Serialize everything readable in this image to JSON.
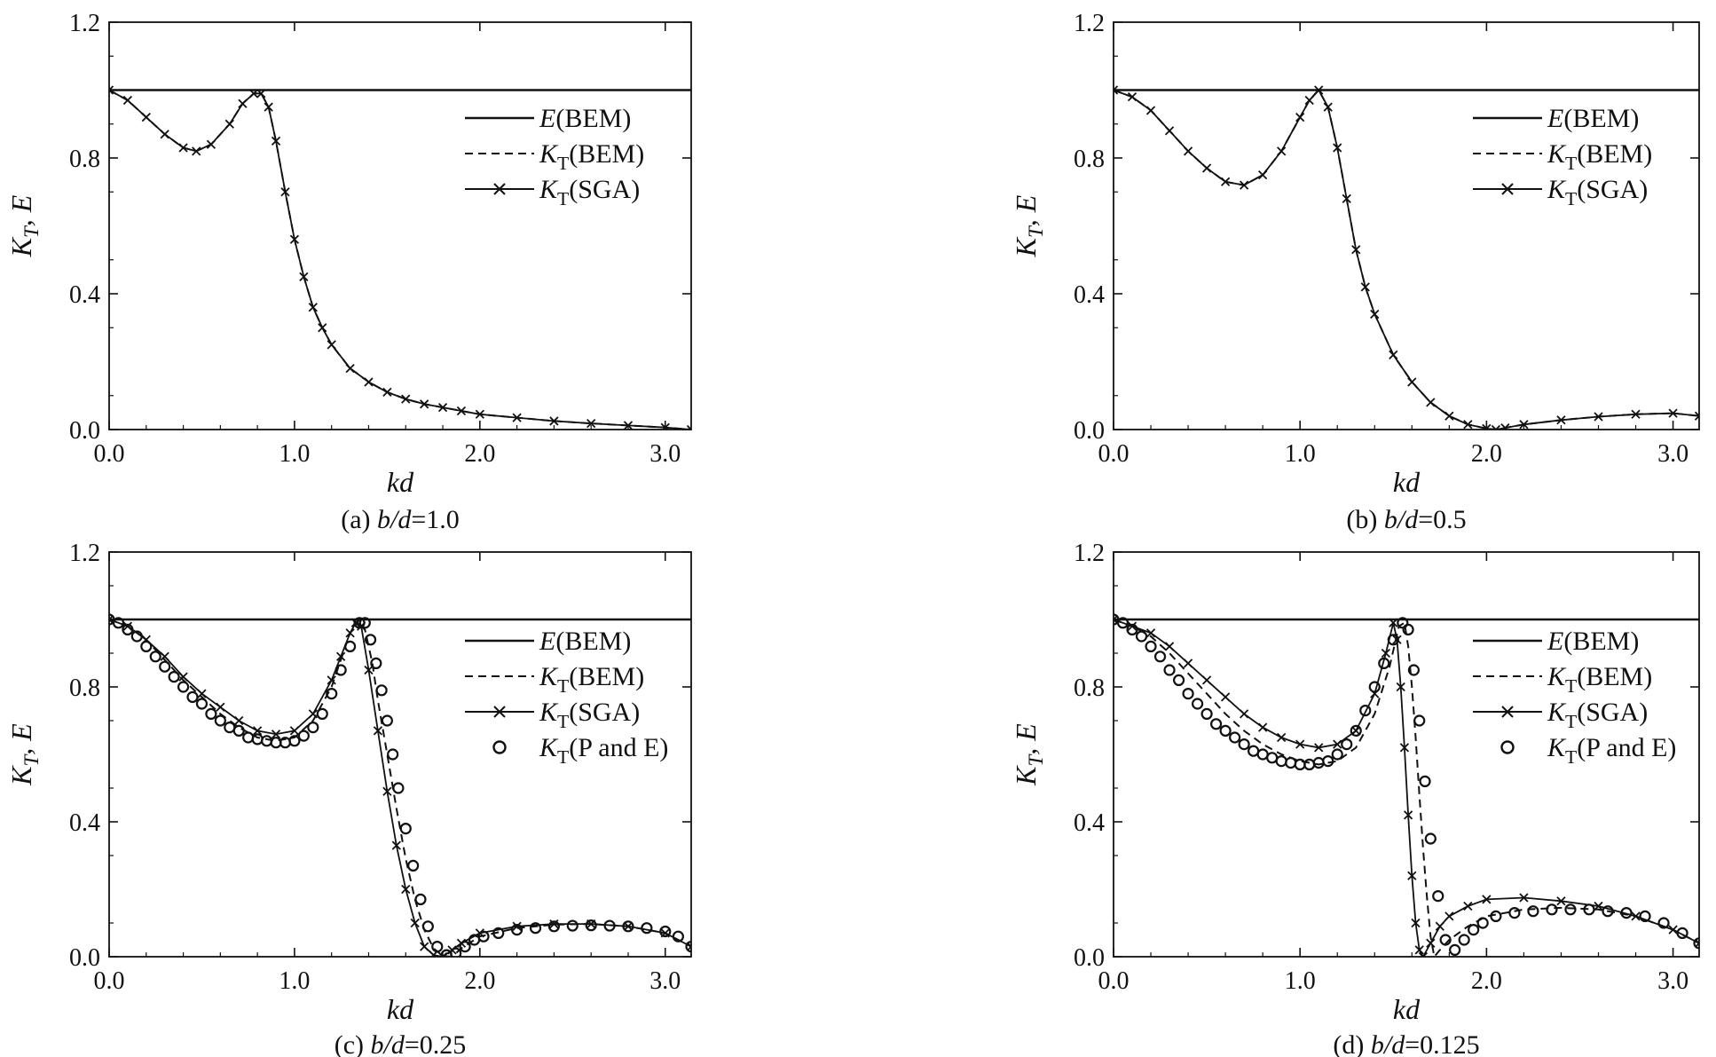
{
  "figure": {
    "panels": [
      {
        "caption": "(a) b/d=1.0",
        "xlabel": "kd",
        "ylabel": "K_T, E",
        "legend": [
          "E(BEM)",
          "K_T(BEM)",
          "K_T(SGA)"
        ]
      },
      {
        "caption": "(b) b/d=0.5",
        "xlabel": "kd",
        "ylabel": "K_T, E",
        "legend": [
          "E(BEM)",
          "K_T(BEM)",
          "K_T(SGA)"
        ]
      },
      {
        "caption": "(c) b/d=0.25",
        "xlabel": "kd",
        "ylabel": "K_T, E",
        "legend": [
          "E(BEM)",
          "K_T(BEM)",
          "K_T(SGA)",
          "K_T(P and E)"
        ]
      },
      {
        "caption": "(d) b/d=0.125",
        "xlabel": "kd",
        "ylabel": "K_T, E",
        "legend": [
          "E(BEM)",
          "K_T(BEM)",
          "K_T(SGA)",
          "K_T(P and E)"
        ]
      }
    ]
  },
  "chart_data": [
    {
      "type": "line",
      "panel": "(a) b/d=1.0",
      "xlabel": "kd",
      "ylabel": "K_T, E",
      "xlim": [
        0,
        3.14
      ],
      "ylim": [
        0,
        1.2
      ],
      "xticks": [
        "0.0",
        "1.0",
        "2.0",
        "3.0"
      ],
      "yticks": [
        "0.0",
        "0.4",
        "0.8",
        "1.2"
      ],
      "legend_position": "upper-right",
      "series": [
        {
          "name": "E(BEM)",
          "style": "solid",
          "x": [
            0,
            3.14
          ],
          "y": [
            1.0,
            1.0
          ]
        },
        {
          "name": "K_T(BEM)",
          "style": "dashed",
          "x": [
            0,
            0.1,
            0.2,
            0.3,
            0.4,
            0.47,
            0.55,
            0.65,
            0.72,
            0.78,
            0.82,
            0.86,
            0.9,
            0.95,
            1.0,
            1.05,
            1.1,
            1.15,
            1.2,
            1.3,
            1.4,
            1.5,
            1.6,
            1.7,
            1.8,
            1.9,
            2.0,
            2.2,
            2.4,
            2.6,
            2.8,
            3.0,
            3.14
          ],
          "y": [
            1.0,
            0.97,
            0.92,
            0.87,
            0.83,
            0.82,
            0.84,
            0.9,
            0.96,
            0.99,
            0.99,
            0.95,
            0.85,
            0.7,
            0.56,
            0.45,
            0.36,
            0.3,
            0.25,
            0.18,
            0.14,
            0.11,
            0.09,
            0.075,
            0.065,
            0.055,
            0.045,
            0.035,
            0.025,
            0.018,
            0.012,
            0.006,
            0.0
          ]
        },
        {
          "name": "K_T(SGA)",
          "style": "solid-x",
          "x": [
            0,
            0.1,
            0.2,
            0.3,
            0.4,
            0.47,
            0.55,
            0.65,
            0.72,
            0.78,
            0.82,
            0.86,
            0.9,
            0.95,
            1.0,
            1.05,
            1.1,
            1.15,
            1.2,
            1.3,
            1.4,
            1.5,
            1.6,
            1.7,
            1.8,
            1.9,
            2.0,
            2.2,
            2.4,
            2.6,
            2.8,
            3.0,
            3.14
          ],
          "y": [
            1.0,
            0.97,
            0.92,
            0.87,
            0.83,
            0.82,
            0.84,
            0.9,
            0.96,
            0.99,
            0.99,
            0.95,
            0.85,
            0.7,
            0.56,
            0.45,
            0.36,
            0.3,
            0.25,
            0.18,
            0.14,
            0.11,
            0.09,
            0.075,
            0.065,
            0.055,
            0.045,
            0.035,
            0.025,
            0.018,
            0.012,
            0.006,
            0.0
          ]
        }
      ]
    },
    {
      "type": "line",
      "panel": "(b) b/d=0.5",
      "xlabel": "kd",
      "ylabel": "K_T, E",
      "xlim": [
        0,
        3.14
      ],
      "ylim": [
        0,
        1.2
      ],
      "xticks": [
        "0.0",
        "1.0",
        "2.0",
        "3.0"
      ],
      "yticks": [
        "0.0",
        "0.4",
        "0.8",
        "1.2"
      ],
      "legend_position": "upper-right",
      "series": [
        {
          "name": "E(BEM)",
          "style": "solid",
          "x": [
            0,
            3.14
          ],
          "y": [
            1.0,
            1.0
          ]
        },
        {
          "name": "K_T(BEM)",
          "style": "dashed",
          "x": [
            0,
            0.1,
            0.2,
            0.3,
            0.4,
            0.5,
            0.6,
            0.7,
            0.8,
            0.9,
            1.0,
            1.05,
            1.1,
            1.15,
            1.2,
            1.25,
            1.3,
            1.35,
            1.4,
            1.5,
            1.6,
            1.7,
            1.8,
            1.9,
            2.0,
            2.05,
            2.1,
            2.2,
            2.4,
            2.6,
            2.8,
            3.0,
            3.14
          ],
          "y": [
            1.0,
            0.98,
            0.94,
            0.88,
            0.82,
            0.77,
            0.73,
            0.72,
            0.75,
            0.82,
            0.92,
            0.97,
            1.0,
            0.95,
            0.83,
            0.68,
            0.53,
            0.42,
            0.34,
            0.22,
            0.14,
            0.08,
            0.04,
            0.015,
            0.003,
            0.0,
            0.005,
            0.015,
            0.028,
            0.038,
            0.045,
            0.048,
            0.04
          ]
        },
        {
          "name": "K_T(SGA)",
          "style": "solid-x",
          "x": [
            0,
            0.1,
            0.2,
            0.3,
            0.4,
            0.5,
            0.6,
            0.7,
            0.8,
            0.9,
            1.0,
            1.05,
            1.1,
            1.15,
            1.2,
            1.25,
            1.3,
            1.35,
            1.4,
            1.5,
            1.6,
            1.7,
            1.8,
            1.9,
            2.0,
            2.05,
            2.1,
            2.2,
            2.4,
            2.6,
            2.8,
            3.0,
            3.14
          ],
          "y": [
            1.0,
            0.98,
            0.94,
            0.88,
            0.82,
            0.77,
            0.73,
            0.72,
            0.75,
            0.82,
            0.92,
            0.97,
            1.0,
            0.95,
            0.83,
            0.68,
            0.53,
            0.42,
            0.34,
            0.22,
            0.14,
            0.08,
            0.04,
            0.015,
            0.003,
            0.0,
            0.005,
            0.015,
            0.028,
            0.038,
            0.045,
            0.048,
            0.04
          ]
        }
      ]
    },
    {
      "type": "line",
      "panel": "(c) b/d=0.25",
      "xlabel": "kd",
      "ylabel": "K_T, E",
      "xlim": [
        0,
        3.14
      ],
      "ylim": [
        0,
        1.2
      ],
      "xticks": [
        "0.0",
        "1.0",
        "2.0",
        "3.0"
      ],
      "yticks": [
        "0.0",
        "0.4",
        "0.8",
        "1.2"
      ],
      "legend_position": "upper-right",
      "series": [
        {
          "name": "E(BEM)",
          "style": "solid",
          "x": [
            0,
            3.14
          ],
          "y": [
            1.0,
            1.0
          ]
        },
        {
          "name": "K_T(BEM)",
          "style": "dashed",
          "x": [
            0,
            0.1,
            0.2,
            0.3,
            0.4,
            0.5,
            0.6,
            0.7,
            0.8,
            0.9,
            1.0,
            1.1,
            1.2,
            1.25,
            1.3,
            1.35,
            1.38,
            1.42,
            1.45,
            1.5,
            1.55,
            1.6,
            1.65,
            1.7,
            1.75,
            1.8,
            1.85,
            1.9,
            2.0,
            2.2,
            2.4,
            2.6,
            2.8,
            3.0,
            3.14
          ],
          "y": [
            1.0,
            0.98,
            0.94,
            0.88,
            0.82,
            0.77,
            0.72,
            0.68,
            0.65,
            0.64,
            0.65,
            0.7,
            0.8,
            0.88,
            0.96,
            1.0,
            0.97,
            0.87,
            0.76,
            0.6,
            0.44,
            0.29,
            0.17,
            0.08,
            0.025,
            0.002,
            0.0,
            0.025,
            0.06,
            0.085,
            0.095,
            0.097,
            0.09,
            0.07,
            0.03
          ]
        },
        {
          "name": "K_T(SGA)",
          "style": "solid-x",
          "x": [
            0,
            0.1,
            0.2,
            0.3,
            0.4,
            0.5,
            0.6,
            0.7,
            0.8,
            0.9,
            1.0,
            1.1,
            1.2,
            1.25,
            1.3,
            1.33,
            1.36,
            1.4,
            1.45,
            1.5,
            1.55,
            1.6,
            1.65,
            1.7,
            1.75,
            1.8,
            1.85,
            1.9,
            2.0,
            2.2,
            2.4,
            2.6,
            2.8,
            3.0,
            3.14
          ],
          "y": [
            1.0,
            0.98,
            0.94,
            0.89,
            0.83,
            0.78,
            0.74,
            0.7,
            0.67,
            0.66,
            0.67,
            0.72,
            0.82,
            0.89,
            0.96,
            0.99,
            0.98,
            0.85,
            0.67,
            0.49,
            0.33,
            0.2,
            0.1,
            0.03,
            0.005,
            0.0,
            0.02,
            0.04,
            0.07,
            0.09,
            0.097,
            0.097,
            0.09,
            0.07,
            0.03
          ]
        },
        {
          "name": "K_T(P and E)",
          "style": "circles",
          "x": [
            0,
            0.05,
            0.1,
            0.15,
            0.2,
            0.25,
            0.3,
            0.35,
            0.4,
            0.45,
            0.5,
            0.55,
            0.6,
            0.65,
            0.7,
            0.75,
            0.8,
            0.85,
            0.9,
            0.95,
            1.0,
            1.05,
            1.1,
            1.15,
            1.2,
            1.25,
            1.3,
            1.35,
            1.38,
            1.41,
            1.44,
            1.47,
            1.5,
            1.53,
            1.56,
            1.6,
            1.64,
            1.68,
            1.72,
            1.77,
            1.82,
            1.87,
            1.92,
            1.97,
            2.02,
            2.1,
            2.2,
            2.3,
            2.4,
            2.5,
            2.6,
            2.7,
            2.8,
            2.9,
            3.0,
            3.07,
            3.14
          ],
          "y": [
            1.0,
            0.99,
            0.97,
            0.95,
            0.92,
            0.89,
            0.86,
            0.83,
            0.8,
            0.77,
            0.75,
            0.72,
            0.7,
            0.68,
            0.67,
            0.65,
            0.645,
            0.64,
            0.635,
            0.635,
            0.64,
            0.655,
            0.68,
            0.72,
            0.78,
            0.85,
            0.92,
            0.99,
            0.99,
            0.94,
            0.87,
            0.79,
            0.7,
            0.6,
            0.5,
            0.38,
            0.27,
            0.17,
            0.09,
            0.03,
            0.005,
            0.01,
            0.03,
            0.05,
            0.06,
            0.07,
            0.08,
            0.085,
            0.09,
            0.092,
            0.093,
            0.092,
            0.09,
            0.085,
            0.075,
            0.06,
            0.03
          ]
        }
      ]
    },
    {
      "type": "line",
      "panel": "(d) b/d=0.125",
      "xlabel": "kd",
      "ylabel": "K_T, E",
      "xlim": [
        0,
        3.14
      ],
      "ylim": [
        0,
        1.2
      ],
      "xticks": [
        "0.0",
        "1.0",
        "2.0",
        "3.0"
      ],
      "yticks": [
        "0.0",
        "0.4",
        "0.8",
        "1.2"
      ],
      "legend_position": "upper-right",
      "series": [
        {
          "name": "E(BEM)",
          "style": "solid",
          "x": [
            0,
            3.14
          ],
          "y": [
            1.0,
            1.0
          ]
        },
        {
          "name": "K_T(BEM)",
          "style": "dashed",
          "x": [
            0,
            0.1,
            0.2,
            0.3,
            0.4,
            0.5,
            0.6,
            0.7,
            0.8,
            0.9,
            1.0,
            1.1,
            1.2,
            1.3,
            1.4,
            1.48,
            1.53,
            1.56,
            1.58,
            1.6,
            1.62,
            1.64,
            1.66,
            1.68,
            1.7,
            1.72,
            1.75,
            1.8,
            1.9,
            2.0,
            2.2,
            2.4,
            2.6,
            2.8,
            3.0,
            3.14
          ],
          "y": [
            1.0,
            0.98,
            0.95,
            0.9,
            0.84,
            0.78,
            0.72,
            0.67,
            0.63,
            0.6,
            0.58,
            0.57,
            0.58,
            0.62,
            0.72,
            0.86,
            0.98,
            0.99,
            0.92,
            0.8,
            0.65,
            0.48,
            0.32,
            0.18,
            0.06,
            0.0,
            0.02,
            0.05,
            0.09,
            0.12,
            0.14,
            0.145,
            0.14,
            0.12,
            0.08,
            0.04
          ]
        },
        {
          "name": "K_T(SGA)",
          "style": "solid-x",
          "x": [
            0,
            0.1,
            0.2,
            0.3,
            0.4,
            0.5,
            0.6,
            0.7,
            0.8,
            0.9,
            1.0,
            1.1,
            1.2,
            1.3,
            1.4,
            1.46,
            1.5,
            1.52,
            1.54,
            1.56,
            1.58,
            1.6,
            1.62,
            1.64,
            1.66,
            1.7,
            1.75,
            1.8,
            1.9,
            2.0,
            2.2,
            2.4,
            2.6,
            2.8,
            3.0,
            3.14
          ],
          "y": [
            1.0,
            0.98,
            0.96,
            0.92,
            0.87,
            0.82,
            0.77,
            0.72,
            0.68,
            0.65,
            0.63,
            0.62,
            0.63,
            0.67,
            0.78,
            0.9,
            0.99,
            0.94,
            0.8,
            0.62,
            0.42,
            0.24,
            0.1,
            0.02,
            0.0,
            0.04,
            0.09,
            0.12,
            0.15,
            0.17,
            0.175,
            0.165,
            0.15,
            0.12,
            0.08,
            0.04
          ]
        },
        {
          "name": "K_T(P and E)",
          "style": "circles",
          "x": [
            0,
            0.05,
            0.1,
            0.15,
            0.2,
            0.25,
            0.3,
            0.35,
            0.4,
            0.45,
            0.5,
            0.55,
            0.6,
            0.65,
            0.7,
            0.75,
            0.8,
            0.85,
            0.9,
            0.95,
            1.0,
            1.05,
            1.1,
            1.15,
            1.2,
            1.25,
            1.3,
            1.35,
            1.4,
            1.45,
            1.5,
            1.55,
            1.58,
            1.61,
            1.64,
            1.67,
            1.7,
            1.74,
            1.78,
            1.83,
            1.88,
            1.93,
            1.98,
            2.05,
            2.15,
            2.25,
            2.35,
            2.45,
            2.55,
            2.65,
            2.75,
            2.85,
            2.95,
            3.05,
            3.14
          ],
          "y": [
            1.0,
            0.99,
            0.97,
            0.95,
            0.92,
            0.89,
            0.85,
            0.82,
            0.78,
            0.75,
            0.72,
            0.69,
            0.67,
            0.65,
            0.63,
            0.61,
            0.6,
            0.59,
            0.58,
            0.575,
            0.57,
            0.57,
            0.575,
            0.58,
            0.6,
            0.63,
            0.67,
            0.73,
            0.8,
            0.87,
            0.94,
            0.99,
            0.97,
            0.85,
            0.7,
            0.52,
            0.35,
            0.18,
            0.05,
            0.02,
            0.05,
            0.08,
            0.1,
            0.12,
            0.13,
            0.135,
            0.14,
            0.14,
            0.14,
            0.135,
            0.13,
            0.12,
            0.1,
            0.07,
            0.04
          ]
        }
      ]
    }
  ]
}
